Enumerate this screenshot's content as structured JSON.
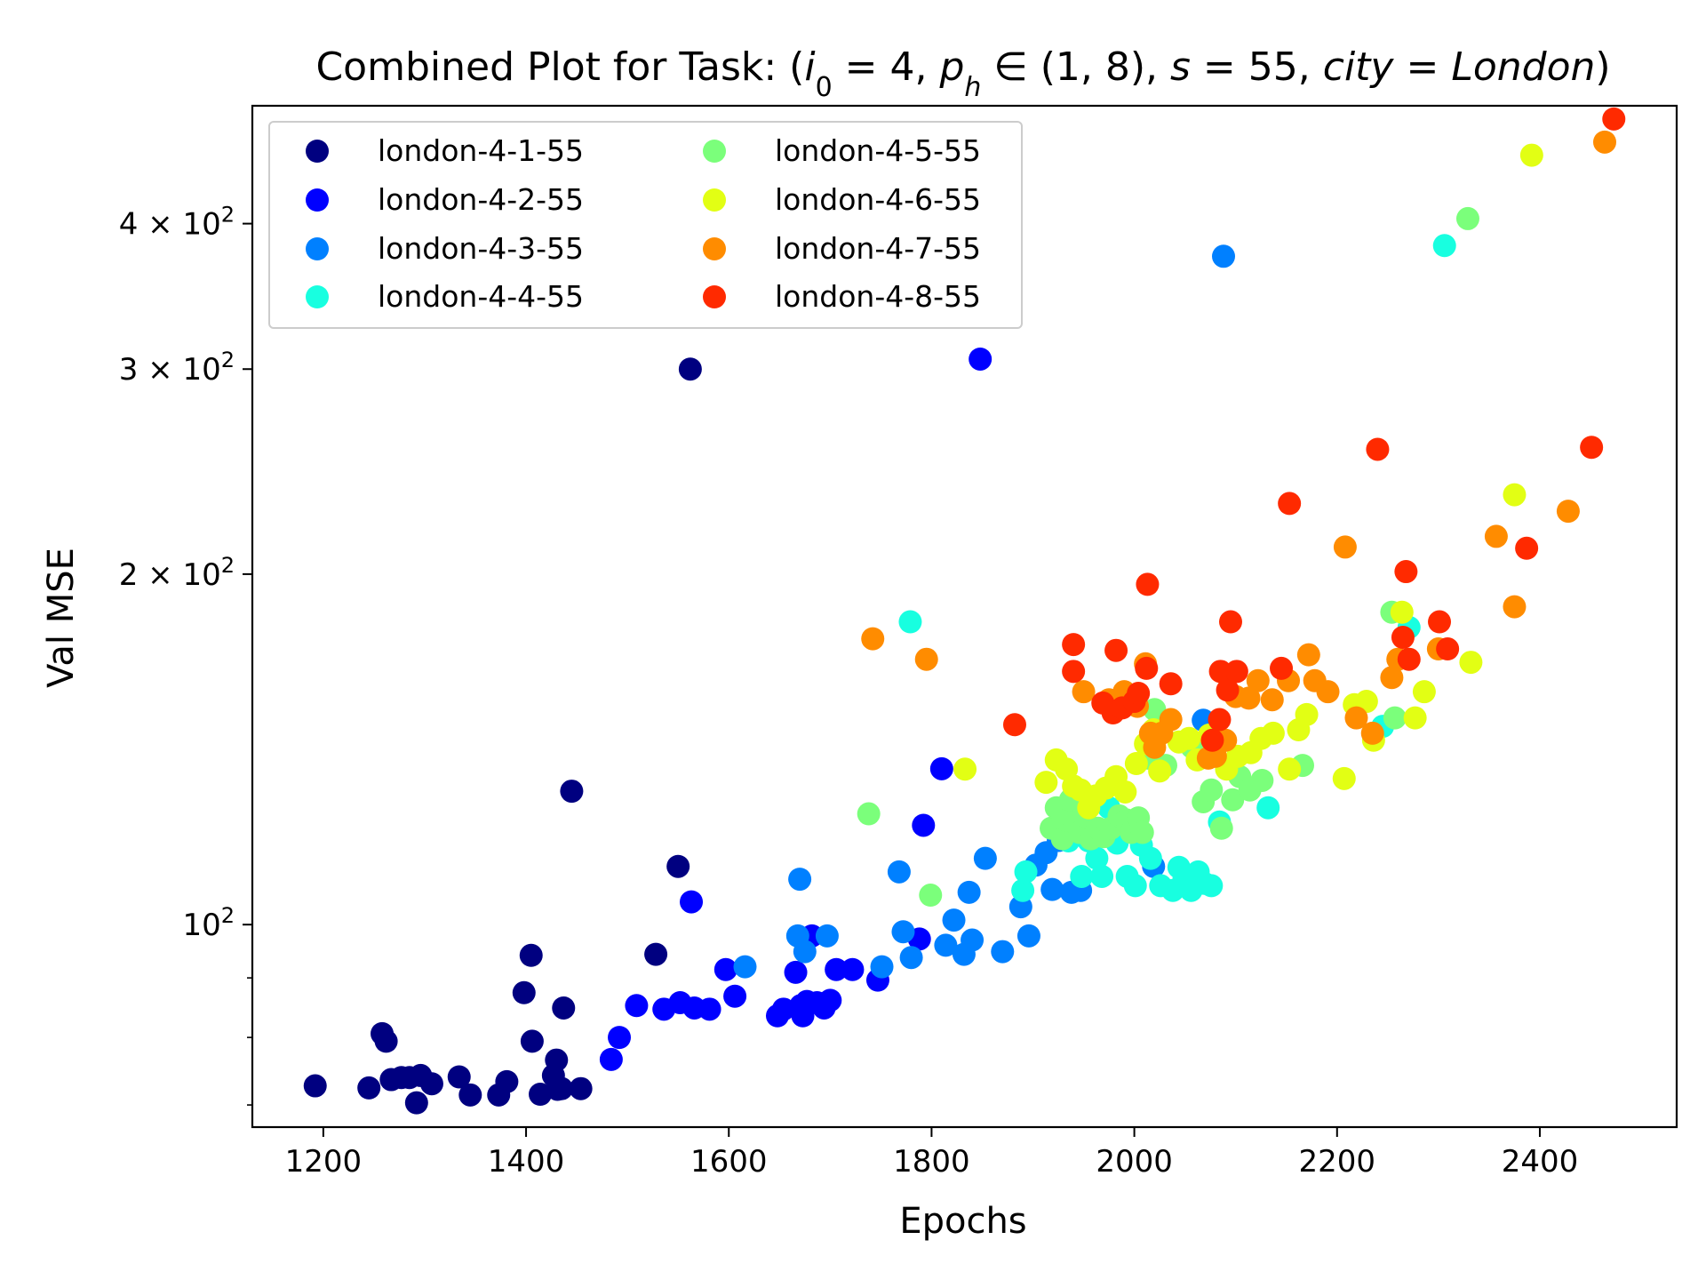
{
  "chart_data": {
    "type": "scatter",
    "title": "Combined Plot for Task: (i₀ = 4, pₕ ∈ (1, 8), s = 55, city = London)",
    "title_parts": {
      "prefix": "Combined Plot for Task: (",
      "i_sym": "i",
      "i_sub": "0",
      "i_val": " = 4, ",
      "p_sym": "p",
      "p_sub": "h",
      "p_val": " ∈ (1, 8), ",
      "s_sym": "s",
      "s_val": " = 55, ",
      "city_sym": "city",
      "eq": " = ",
      "city_val": "London",
      "suffix": ")"
    },
    "xlabel": "Epochs",
    "ylabel": "Val MSE",
    "xlim": [
      1130,
      2535
    ],
    "ylim": [
      67,
      505
    ],
    "yscale": "log",
    "xticks": [
      1200,
      1400,
      1600,
      1800,
      2000,
      2200,
      2400
    ],
    "yticks_major": [
      {
        "value": 100,
        "mantissa": "",
        "base": "10",
        "exp": "2"
      },
      {
        "value": 200,
        "mantissa": "2 × ",
        "base": "10",
        "exp": "2"
      },
      {
        "value": 300,
        "mantissa": "3 × ",
        "base": "10",
        "exp": "2"
      },
      {
        "value": 400,
        "mantissa": "4 × ",
        "base": "10",
        "exp": "2"
      }
    ],
    "yticks_minor": [
      70,
      80,
      90
    ],
    "grid": false,
    "legend": {
      "placement": "top-left",
      "columns": 2
    },
    "series": [
      {
        "name": "london-4-1-55",
        "color": "#000080",
        "points": [
          [
            1192,
            72.7
          ],
          [
            1245,
            72.4
          ],
          [
            1258,
            80.6
          ],
          [
            1262,
            79.4
          ],
          [
            1267,
            73.6
          ],
          [
            1277,
            73.9
          ],
          [
            1285,
            73.9
          ],
          [
            1292,
            70.3
          ],
          [
            1296,
            74.2
          ],
          [
            1307,
            73.0
          ],
          [
            1334,
            74.0
          ],
          [
            1345,
            71.4
          ],
          [
            1373,
            71.4
          ],
          [
            1381,
            73.3
          ],
          [
            1398,
            87.4
          ],
          [
            1405,
            94.1
          ],
          [
            1406,
            79.4
          ],
          [
            1414,
            71.5
          ],
          [
            1427,
            74.2
          ],
          [
            1430,
            76.5
          ],
          [
            1431,
            72.2
          ],
          [
            1435,
            72.3
          ],
          [
            1437,
            84.8
          ],
          [
            1445,
            130.2
          ],
          [
            1454,
            72.3
          ],
          [
            1528,
            94.3
          ],
          [
            1550,
            112.2
          ],
          [
            1562,
            300.0
          ]
        ]
      },
      {
        "name": "london-4-2-55",
        "color": "#0000ff",
        "points": [
          [
            1484,
            76.6
          ],
          [
            1492,
            80.0
          ],
          [
            1509,
            85.2
          ],
          [
            1536,
            84.6
          ],
          [
            1552,
            85.7
          ],
          [
            1563,
            104.6
          ],
          [
            1566,
            84.8
          ],
          [
            1581,
            84.6
          ],
          [
            1597,
            91.5
          ],
          [
            1606,
            86.8
          ],
          [
            1648,
            83.5
          ],
          [
            1654,
            84.6
          ],
          [
            1666,
            91.0
          ],
          [
            1671,
            85.2
          ],
          [
            1673,
            83.5
          ],
          [
            1677,
            85.9
          ],
          [
            1682,
            97.8
          ],
          [
            1687,
            85.7
          ],
          [
            1694,
            84.8
          ],
          [
            1700,
            86.1
          ],
          [
            1706,
            91.5
          ],
          [
            1722,
            91.5
          ],
          [
            1747,
            89.6
          ],
          [
            1788,
            97.2
          ],
          [
            1792,
            121.7
          ],
          [
            1810,
            136.1
          ],
          [
            1848,
            306.0
          ]
        ]
      },
      {
        "name": "london-4-3-55",
        "color": "#0080ff",
        "points": [
          [
            1616,
            92.0
          ],
          [
            1668,
            97.8
          ],
          [
            1670,
            109.4
          ],
          [
            1675,
            94.8
          ],
          [
            1697,
            97.8
          ],
          [
            1751,
            92.0
          ],
          [
            1768,
            111.0
          ],
          [
            1772,
            98.6
          ],
          [
            1780,
            93.7
          ],
          [
            1814,
            96.0
          ],
          [
            1822,
            100.9
          ],
          [
            1832,
            94.3
          ],
          [
            1837,
            106.6
          ],
          [
            1840,
            97.0
          ],
          [
            1853,
            114.0
          ],
          [
            1870,
            94.8
          ],
          [
            1888,
            103.6
          ],
          [
            1896,
            97.8
          ],
          [
            1903,
            112.5
          ],
          [
            1913,
            115.3
          ],
          [
            1919,
            107.2
          ],
          [
            1925,
            118.1
          ],
          [
            1938,
            106.6
          ],
          [
            1947,
            107.0
          ],
          [
            2019,
            112.2
          ],
          [
            2068,
            149.8
          ],
          [
            2088,
            375.0
          ]
        ]
      },
      {
        "name": "london-4-4-55",
        "color": "#18ffe0",
        "points": [
          [
            1779,
            182.0
          ],
          [
            1890,
            107.0
          ],
          [
            1893,
            111.0
          ],
          [
            1935,
            118.0
          ],
          [
            1948,
            110.0
          ],
          [
            1955,
            118.0
          ],
          [
            1963,
            114.0
          ],
          [
            1968,
            110.0
          ],
          [
            1975,
            126.0
          ],
          [
            1983,
            117.5
          ],
          [
            1993,
            110.0
          ],
          [
            2001,
            108.0
          ],
          [
            2007,
            117.0
          ],
          [
            2016,
            114.0
          ],
          [
            2026,
            108.0
          ],
          [
            2038,
            107.0
          ],
          [
            2044,
            112.0
          ],
          [
            2049,
            109.5
          ],
          [
            2056,
            107.0
          ],
          [
            2063,
            111.0
          ],
          [
            2069,
            108.5
          ],
          [
            2076,
            108.0
          ],
          [
            2084,
            122.5
          ],
          [
            2132,
            126.0
          ],
          [
            2245,
            148.0
          ],
          [
            2271,
            180.0
          ],
          [
            2306,
            383.0
          ]
        ]
      },
      {
        "name": "london-4-5-55",
        "color": "#7bff7b",
        "points": [
          [
            1738,
            124.5
          ],
          [
            1799,
            106.0
          ],
          [
            1918,
            121.0
          ],
          [
            1923,
            126.0
          ],
          [
            1929,
            118.5
          ],
          [
            1933,
            123.0
          ],
          [
            1937,
            128.0
          ],
          [
            1941,
            122.5
          ],
          [
            1946,
            120.0
          ],
          [
            1951,
            124.0
          ],
          [
            1957,
            118.5
          ],
          [
            1964,
            121.0
          ],
          [
            1970,
            119.0
          ],
          [
            1977,
            121.0
          ],
          [
            1985,
            124.0
          ],
          [
            1992,
            123.0
          ],
          [
            1997,
            120.0
          ],
          [
            2004,
            123.5
          ],
          [
            2008,
            120.0
          ],
          [
            2013,
            139.0
          ],
          [
            2020,
            153.0
          ],
          [
            2031,
            137.0
          ],
          [
            2057,
            142.0
          ],
          [
            2068,
            127.5
          ],
          [
            2076,
            130.5
          ],
          [
            2086,
            121.0
          ],
          [
            2097,
            128.0
          ],
          [
            2104,
            134.0
          ],
          [
            2114,
            130.5
          ],
          [
            2126,
            133.0
          ],
          [
            2166,
            137.0
          ],
          [
            2254,
            185.5
          ],
          [
            2257,
            150.5
          ],
          [
            2329,
            404.0
          ]
        ]
      },
      {
        "name": "london-4-6-55",
        "color": "#e2ff14",
        "points": [
          [
            1833,
            136.0
          ],
          [
            1913,
            132.5
          ],
          [
            1923,
            138.5
          ],
          [
            1933,
            136.0
          ],
          [
            1940,
            131.5
          ],
          [
            1947,
            130.5
          ],
          [
            1955,
            126.0
          ],
          [
            1962,
            129.0
          ],
          [
            1972,
            131.0
          ],
          [
            1982,
            134.0
          ],
          [
            1991,
            130.0
          ],
          [
            2002,
            137.5
          ],
          [
            2011,
            143.0
          ],
          [
            2019,
            147.0
          ],
          [
            2025,
            135.5
          ],
          [
            2044,
            143.5
          ],
          [
            2054,
            144.5
          ],
          [
            2062,
            138.5
          ],
          [
            2074,
            145.5
          ],
          [
            2083,
            143.0
          ],
          [
            2091,
            136.0
          ],
          [
            2102,
            139.5
          ],
          [
            2115,
            140.5
          ],
          [
            2125,
            144.5
          ],
          [
            2137,
            146.0
          ],
          [
            2153,
            136.0
          ],
          [
            2162,
            147.0
          ],
          [
            2170,
            151.5
          ],
          [
            2207,
            133.5
          ],
          [
            2217,
            154.5
          ],
          [
            2229,
            155.5
          ],
          [
            2236,
            144.0
          ],
          [
            2264,
            185.5
          ],
          [
            2277,
            150.5
          ],
          [
            2286,
            158.5
          ],
          [
            2332,
            168.0
          ],
          [
            2375,
            234.0
          ],
          [
            2392,
            458.0
          ]
        ]
      },
      {
        "name": "london-4-7-55",
        "color": "#ff8c00",
        "points": [
          [
            1742,
            176.0
          ],
          [
            1795,
            169.0
          ],
          [
            1950,
            158.5
          ],
          [
            1975,
            156.0
          ],
          [
            1990,
            158.5
          ],
          [
            2003,
            154.0
          ],
          [
            2011,
            167.5
          ],
          [
            2016,
            146.0
          ],
          [
            2020,
            142.0
          ],
          [
            2027,
            146.0
          ],
          [
            2036,
            150.0
          ],
          [
            2073,
            139.0
          ],
          [
            2080,
            139.5
          ],
          [
            2090,
            144.0
          ],
          [
            2100,
            157.0
          ],
          [
            2113,
            156.5
          ],
          [
            2122,
            162.0
          ],
          [
            2136,
            156.0
          ],
          [
            2152,
            162.0
          ],
          [
            2172,
            170.5
          ],
          [
            2178,
            162.0
          ],
          [
            2191,
            158.5
          ],
          [
            2208,
            211.0
          ],
          [
            2219,
            150.5
          ],
          [
            2235,
            146.0
          ],
          [
            2254,
            163.0
          ],
          [
            2260,
            169.0
          ],
          [
            2300,
            172.5
          ],
          [
            2357,
            215.5
          ],
          [
            2375,
            187.5
          ],
          [
            2428,
            226.5
          ],
          [
            2464,
            470.0
          ]
        ]
      },
      {
        "name": "london-4-8-55",
        "color": "#ff2a00",
        "points": [
          [
            1882,
            148.5
          ],
          [
            1940,
            174.0
          ],
          [
            1940,
            165.0
          ],
          [
            1969,
            155.0
          ],
          [
            1979,
            152.0
          ],
          [
            1982,
            172.0
          ],
          [
            1988,
            153.5
          ],
          [
            2000,
            155.5
          ],
          [
            2004,
            158.0
          ],
          [
            2012,
            166.0
          ],
          [
            2013,
            196.0
          ],
          [
            2036,
            161.0
          ],
          [
            2077,
            144.0
          ],
          [
            2084,
            150.0
          ],
          [
            2085,
            165.0
          ],
          [
            2092,
            159.0
          ],
          [
            2095,
            182.0
          ],
          [
            2101,
            165.0
          ],
          [
            2145,
            166.0
          ],
          [
            2153,
            230.0
          ],
          [
            2240,
            256.0
          ],
          [
            2265,
            176.5
          ],
          [
            2268,
            201.0
          ],
          [
            2271,
            169.0
          ],
          [
            2301,
            182.0
          ],
          [
            2309,
            172.5
          ],
          [
            2387,
            210.5
          ],
          [
            2451,
            257.0
          ],
          [
            2473,
            492.0
          ]
        ]
      }
    ]
  }
}
